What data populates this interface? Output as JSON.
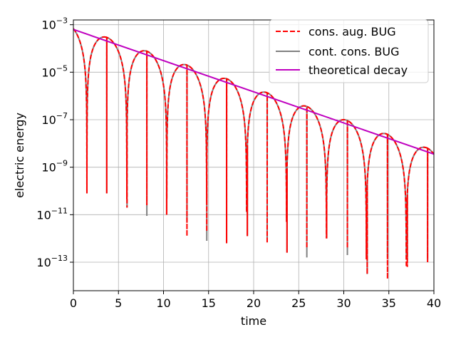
{
  "chart_data": {
    "type": "line",
    "title": "",
    "xlabel": "time",
    "ylabel": "electric energy",
    "xlim": [
      0,
      40
    ],
    "ylim_log10": [
      -14.2,
      -2.8
    ],
    "yscale": "log",
    "grid": true,
    "legend_position": "top-right",
    "x_ticks": [
      {
        "value": 0,
        "label": "0"
      },
      {
        "value": 5,
        "label": "5"
      },
      {
        "value": 10,
        "label": "10"
      },
      {
        "value": 15,
        "label": "15"
      },
      {
        "value": 20,
        "label": "20"
      },
      {
        "value": 25,
        "label": "25"
      },
      {
        "value": 30,
        "label": "30"
      },
      {
        "value": 35,
        "label": "35"
      },
      {
        "value": 40,
        "label": "40"
      }
    ],
    "y_ticks": [
      {
        "exp": -3,
        "base": "10",
        "sup": "−3"
      },
      {
        "exp": -5,
        "base": "10",
        "sup": "−5"
      },
      {
        "exp": -7,
        "base": "10",
        "sup": "−7"
      },
      {
        "exp": -9,
        "base": "10",
        "sup": "−9"
      },
      {
        "exp": -11,
        "base": "10",
        "sup": "−11"
      },
      {
        "exp": -13,
        "base": "10",
        "sup": "−13"
      }
    ],
    "oscillation": {
      "peak_start_log10": -3.05,
      "peak_slope_log10_per_time": -0.131,
      "period": 4.43,
      "first_minimum_time": 1.5
    },
    "minima": [
      {
        "t": 1.5,
        "gray_log10": -10.1,
        "red_log10": -10.1
      },
      {
        "t": 3.7,
        "gray_log10": -10.1,
        "red_log10": -10.1
      },
      {
        "t": 5.95,
        "gray_log10": -10.7,
        "red_log10": -10.7
      },
      {
        "t": 8.15,
        "gray_log10": -11.05,
        "red_log10": -10.6
      },
      {
        "t": 10.35,
        "gray_log10": -11.0,
        "red_log10": -11.0
      },
      {
        "t": 12.6,
        "gray_log10": -11.3,
        "red_log10": -11.9
      },
      {
        "t": 14.8,
        "gray_log10": -12.1,
        "red_log10": -11.7
      },
      {
        "t": 17.0,
        "gray_log10": -12.2,
        "red_log10": -12.2
      },
      {
        "t": 19.3,
        "gray_log10": -11.9,
        "red_log10": -11.9
      },
      {
        "t": 21.5,
        "gray_log10": -12.0,
        "red_log10": -12.2
      },
      {
        "t": 23.7,
        "gray_log10": -12.6,
        "red_log10": -12.6
      },
      {
        "t": 25.9,
        "gray_log10": -12.8,
        "red_log10": -12.4
      },
      {
        "t": 28.1,
        "gray_log10": -12.0,
        "red_log10": -12.0
      },
      {
        "t": 30.4,
        "gray_log10": -12.7,
        "red_log10": -12.4
      },
      {
        "t": 32.6,
        "gray_log10": -13.5,
        "red_log10": -13.5
      },
      {
        "t": 34.85,
        "gray_log10": -12.8,
        "red_log10": -13.7
      },
      {
        "t": 37.05,
        "gray_log10": -12.9,
        "red_log10": -13.2
      },
      {
        "t": 39.3,
        "gray_log10": -12.9,
        "red_log10": -13.0
      }
    ],
    "series": [
      {
        "name": "cons. aug. BUG",
        "color": "#ff0000",
        "style": "dashed"
      },
      {
        "name": "cont. cons. BUG",
        "color": "#808080",
        "style": "solid"
      },
      {
        "name": "theoretical decay",
        "color": "#bf00bf",
        "style": "solid"
      }
    ],
    "theoretical_decay": {
      "x": [
        0,
        40
      ],
      "y_log10": [
        -3.2,
        -8.45
      ]
    }
  }
}
